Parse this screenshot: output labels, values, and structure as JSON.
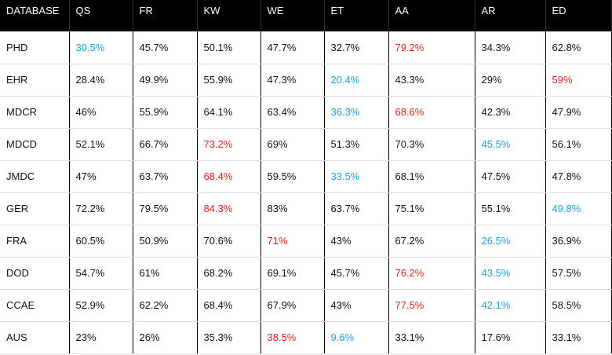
{
  "table": {
    "header": [
      "DATABASE",
      "QS",
      "FR",
      "KW",
      "WE",
      "ET",
      "AA",
      "AR",
      "ED"
    ],
    "rows": [
      [
        "PHD",
        {
          "text": "30.5%",
          "color": "#1ea2d6"
        },
        "45.7%",
        "50.1%",
        "47.7%",
        "32.7%",
        {
          "text": "79.2%",
          "color": "#e02020"
        },
        "34.3%",
        "62.8%"
      ],
      [
        "EHR",
        "28.4%",
        "49.9%",
        "55.9%",
        "47.3%",
        {
          "text": "20.4%",
          "color": "#1ea2d6"
        },
        "43.3%",
        "29%",
        {
          "text": "59%",
          "color": "#e02020"
        }
      ],
      [
        "MDCR",
        "46%",
        "55.9%",
        "64.1%",
        "63.4%",
        {
          "text": "36.3%",
          "color": "#1ea2d6"
        },
        {
          "text": "68.6%",
          "color": "#e02020"
        },
        "42.3%",
        "47.9%"
      ],
      [
        "MDCD",
        "52.1%",
        "66.7%",
        {
          "text": "73.2%",
          "color": "#e02020"
        },
        "69%",
        "51.3%",
        "70.3%",
        {
          "text": "45.5%",
          "color": "#1ea2d6"
        },
        "56.1%"
      ],
      [
        "JMDC",
        "47%",
        "63.7%",
        {
          "text": "68.4%",
          "color": "#e02020"
        },
        "59.5%",
        {
          "text": "33.5%",
          "color": "#1ea2d6"
        },
        "68.1%",
        "47.5%",
        "47.8%"
      ],
      [
        "GER",
        "72.2%",
        "79.5%",
        {
          "text": "84.3%",
          "color": "#e02020"
        },
        "83%",
        "63.7%",
        "75.1%",
        "55.1%",
        {
          "text": "49.8%",
          "color": "#1ea2d6"
        }
      ],
      [
        "FRA",
        "60.5%",
        "50.9%",
        "70.6%",
        {
          "text": "71%",
          "color": "#e02020"
        },
        "43%",
        "67.2%",
        {
          "text": "26.5%",
          "color": "#1ea2d6"
        },
        "36.9%"
      ],
      [
        "DOD",
        "54.7%",
        "61%",
        "68.2%",
        "69.1%",
        "45.7%",
        {
          "text": "76.2%",
          "color": "#e02020"
        },
        {
          "text": "43.5%",
          "color": "#1ea2d6"
        },
        "57.5%"
      ],
      [
        "CCAE",
        "52.9%",
        "62.2%",
        "68.4%",
        "67.9%",
        "43%",
        {
          "text": "77.5%",
          "color": "#e02020"
        },
        {
          "text": "42.1%",
          "color": "#1ea2d6"
        },
        "58.5%"
      ],
      [
        "AUS",
        "23%",
        "26%",
        "35.3%",
        {
          "text": "38.5%",
          "color": "#e02020"
        },
        {
          "text": "9.6%",
          "color": "#1ea2d6"
        },
        "33.1%",
        "17.6%",
        "33.1%"
      ]
    ]
  }
}
